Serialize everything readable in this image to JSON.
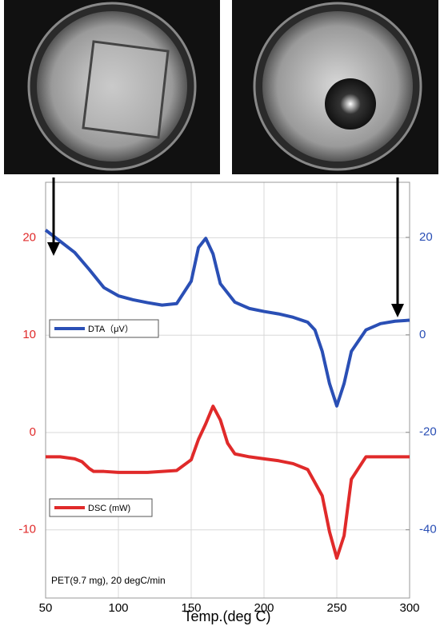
{
  "chart_data": {
    "type": "line",
    "x_label": "Temp.(deg C)",
    "annotation": "PET(9.7 mg), 20 degC/min",
    "xlim": [
      50,
      300
    ],
    "xticks": [
      50,
      100,
      150,
      200,
      250,
      300
    ],
    "ylim": [
      -17,
      25.7
    ],
    "yticks": [
      -10,
      0,
      10,
      20
    ],
    "y2lim": [
      -54,
      31.3
    ],
    "y2ticks": [
      -40,
      -20,
      0,
      20
    ],
    "grid": true,
    "series": [
      {
        "name": "DSC (mW)",
        "color": "#e02a2a",
        "x": [
          50,
          60,
          70,
          75,
          80,
          83,
          90,
          100,
          120,
          140,
          150,
          155,
          160,
          165,
          170,
          175,
          180,
          190,
          200,
          210,
          220,
          230,
          240,
          245,
          250,
          255,
          260,
          270,
          280,
          300
        ],
        "values": [
          -2.5,
          -2.5,
          -2.7,
          -3.0,
          -3.7,
          -4.0,
          -4.0,
          -4.1,
          -4.1,
          -3.9,
          -2.8,
          -0.7,
          0.9,
          2.7,
          1.3,
          -1.1,
          -2.2,
          -2.5,
          -2.7,
          -2.9,
          -3.2,
          -3.8,
          -6.5,
          -10.2,
          -12.9,
          -10.6,
          -4.8,
          -2.5,
          -2.5,
          -2.5
        ]
      },
      {
        "name": "DTA（μV）",
        "color": "#2a4fb5",
        "axis": "y2",
        "x": [
          50,
          60,
          70,
          80,
          90,
          100,
          110,
          120,
          130,
          140,
          150,
          155,
          160,
          165,
          170,
          180,
          190,
          200,
          210,
          220,
          230,
          235,
          240,
          245,
          250,
          255,
          260,
          270,
          280,
          290,
          300
        ],
        "values": [
          21.5,
          19.2,
          16.9,
          13.4,
          9.7,
          8.0,
          7.2,
          6.6,
          6.1,
          6.4,
          11.0,
          17.9,
          19.8,
          16.6,
          10.5,
          6.7,
          5.4,
          4.8,
          4.3,
          3.6,
          2.6,
          1.0,
          -3.4,
          -10.0,
          -14.6,
          -10.0,
          -3.4,
          1.0,
          2.3,
          2.8,
          3.0
        ]
      }
    ]
  }
}
